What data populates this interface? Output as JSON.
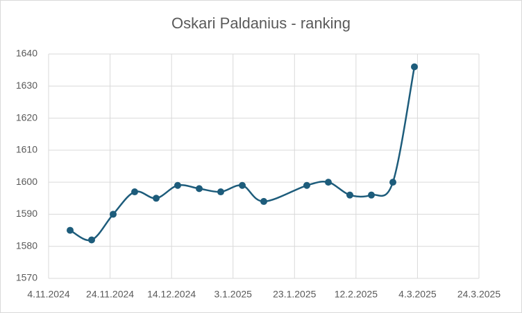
{
  "chart_data": {
    "type": "line",
    "title": "Oskari Paldanius - ranking",
    "x": [
      "2024-11-11",
      "2024-11-18",
      "2024-11-25",
      "2024-12-02",
      "2024-12-09",
      "2024-12-16",
      "2024-12-23",
      "2024-12-30",
      "2025-01-06",
      "2025-01-13",
      "2025-01-27",
      "2025-02-03",
      "2025-02-10",
      "2025-02-17",
      "2025-02-24",
      "2025-03-03"
    ],
    "series": [
      {
        "name": "Oskari Paldanius",
        "color": "#1d5c7b",
        "values": [
          1585,
          1582,
          1590,
          1597,
          1595,
          1599,
          1598,
          1597,
          1599,
          1594,
          1599,
          1600,
          1596,
          1596,
          1600,
          1636
        ]
      }
    ],
    "xlim": [
      "2024-11-04",
      "2025-03-24"
    ],
    "xticks": [
      {
        "value": "2024-11-04",
        "label": "4.11.2024"
      },
      {
        "value": "2024-11-24",
        "label": "24.11.2024"
      },
      {
        "value": "2024-12-14",
        "label": "14.12.2024"
      },
      {
        "value": "2025-01-03",
        "label": "3.1.2025"
      },
      {
        "value": "2025-01-23",
        "label": "23.1.2025"
      },
      {
        "value": "2025-02-12",
        "label": "12.2.2025"
      },
      {
        "value": "2025-03-04",
        "label": "4.3.2025"
      },
      {
        "value": "2025-03-24",
        "label": "24.3.2025"
      }
    ],
    "ylim": [
      1570,
      1640
    ],
    "yticks": [
      1570,
      1580,
      1590,
      1600,
      1610,
      1620,
      1630,
      1640
    ],
    "grid": true,
    "smooth": true
  }
}
